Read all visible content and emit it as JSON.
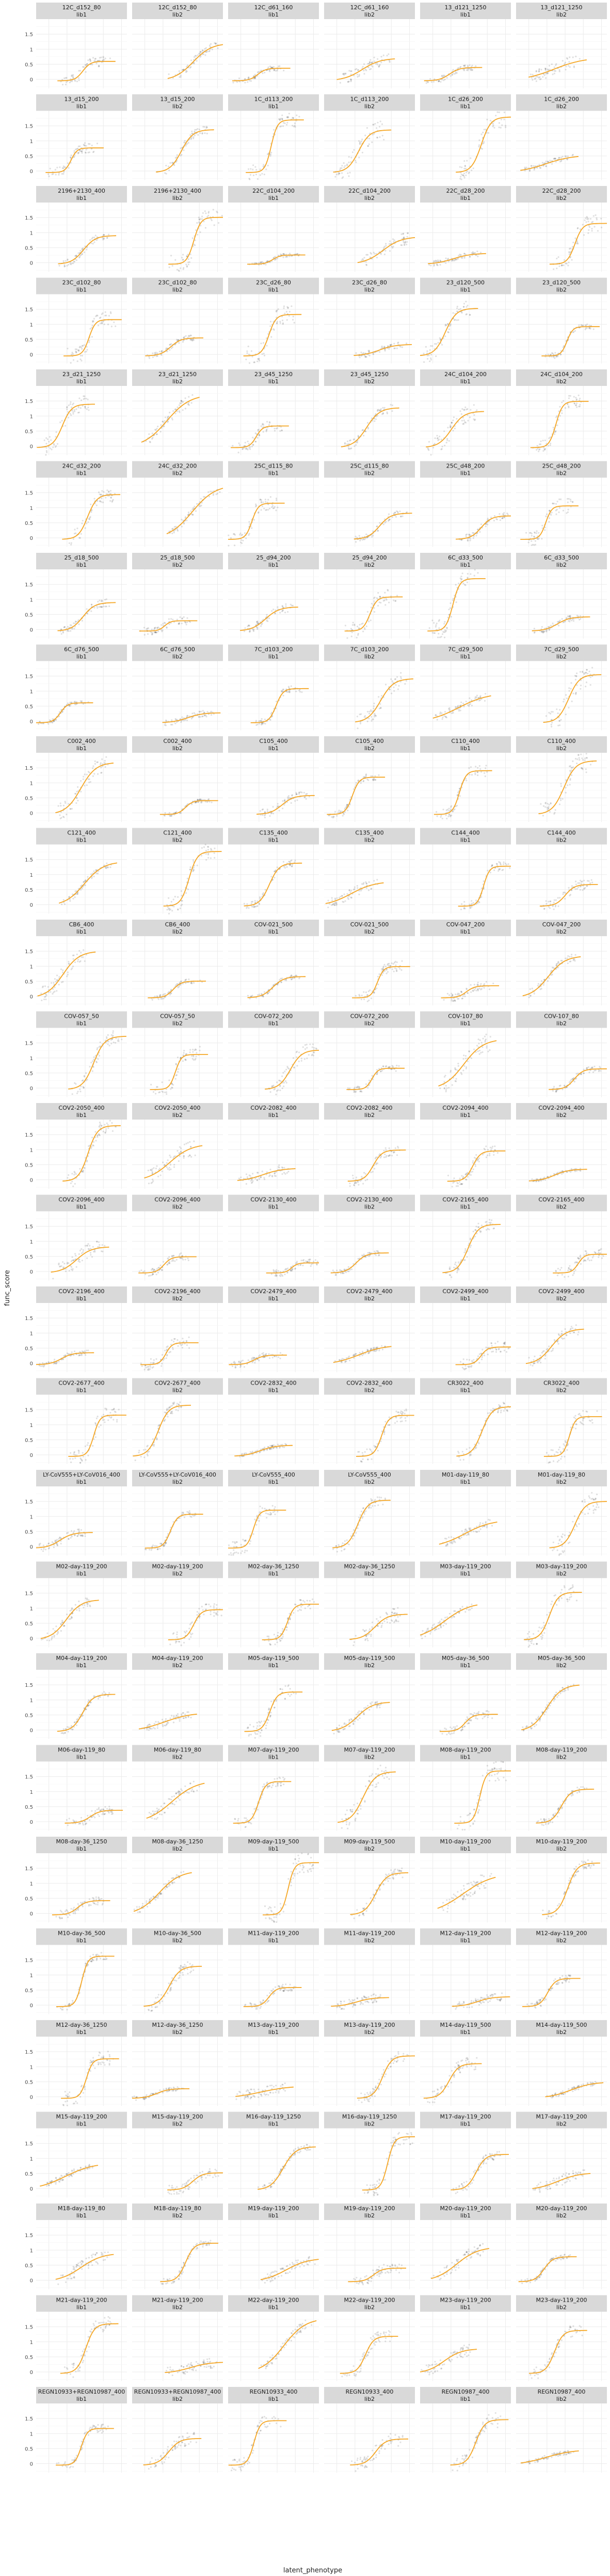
{
  "chart_data": {
    "type": "scatter",
    "title": "",
    "xlabel": "latent_phenotype",
    "ylabel": "func_score",
    "xlim": [
      -7,
      43
    ],
    "ylim": [
      -0.3,
      2.0
    ],
    "xticks": [
      0,
      10,
      20,
      30,
      40
    ],
    "yticks": [
      0,
      0.5,
      1,
      1.5
    ],
    "ytick_labels": [
      "0",
      "0.5",
      "1",
      "1.5"
    ],
    "grid": true,
    "legend": "none",
    "colors": {
      "points": "#000000",
      "curve": "#f5a623",
      "strip": "#d9d9d9",
      "grid": "#ebebeb"
    },
    "series_roles": [
      "func_score observations",
      "fitted curve"
    ],
    "panels": [
      [
        "12C_d152_80",
        "lib1"
      ],
      [
        "12C_d152_80",
        "lib2"
      ],
      [
        "12C_d61_160",
        "lib1"
      ],
      [
        "12C_d61_160",
        "lib2"
      ],
      [
        "13_d121_1250",
        "lib1"
      ],
      [
        "13_d121_1250",
        "lib2"
      ],
      [
        "13_d15_200",
        "lib1"
      ],
      [
        "13_d15_200",
        "lib2"
      ],
      [
        "1C_d113_200",
        "lib1"
      ],
      [
        "1C_d113_200",
        "lib2"
      ],
      [
        "1C_d26_200",
        "lib1"
      ],
      [
        "1C_d26_200",
        "lib2"
      ],
      [
        "2196+2130_400",
        "lib1"
      ],
      [
        "2196+2130_400",
        "lib2"
      ],
      [
        "22C_d104_200",
        "lib1"
      ],
      [
        "22C_d104_200",
        "lib2"
      ],
      [
        "22C_d28_200",
        "lib1"
      ],
      [
        "22C_d28_200",
        "lib2"
      ],
      [
        "23C_d102_80",
        "lib1"
      ],
      [
        "23C_d102_80",
        "lib2"
      ],
      [
        "23C_d26_80",
        "lib1"
      ],
      [
        "23C_d26_80",
        "lib2"
      ],
      [
        "23_d120_500",
        "lib1"
      ],
      [
        "23_d120_500",
        "lib2"
      ],
      [
        "23_d21_1250",
        "lib1"
      ],
      [
        "23_d21_1250",
        "lib2"
      ],
      [
        "23_d45_1250",
        "lib1"
      ],
      [
        "23_d45_1250",
        "lib2"
      ],
      [
        "24C_d104_200",
        "lib1"
      ],
      [
        "24C_d104_200",
        "lib2"
      ],
      [
        "24C_d32_200",
        "lib1"
      ],
      [
        "24C_d32_200",
        "lib2"
      ],
      [
        "25C_d115_80",
        "lib1"
      ],
      [
        "25C_d115_80",
        "lib2"
      ],
      [
        "25C_d48_200",
        "lib1"
      ],
      [
        "25C_d48_200",
        "lib2"
      ],
      [
        "25_d18_500",
        "lib1"
      ],
      [
        "25_d18_500",
        "lib2"
      ],
      [
        "25_d94_200",
        "lib1"
      ],
      [
        "25_d94_200",
        "lib2"
      ],
      [
        "6C_d33_500",
        "lib1"
      ],
      [
        "6C_d33_500",
        "lib2"
      ],
      [
        "6C_d76_500",
        "lib1"
      ],
      [
        "6C_d76_500",
        "lib2"
      ],
      [
        "7C_d103_200",
        "lib1"
      ],
      [
        "7C_d103_200",
        "lib2"
      ],
      [
        "7C_d29_500",
        "lib1"
      ],
      [
        "7C_d29_500",
        "lib2"
      ],
      [
        "C002_400",
        "lib1"
      ],
      [
        "C002_400",
        "lib2"
      ],
      [
        "C105_400",
        "lib1"
      ],
      [
        "C105_400",
        "lib2"
      ],
      [
        "C110_400",
        "lib1"
      ],
      [
        "C110_400",
        "lib2"
      ],
      [
        "C121_400",
        "lib1"
      ],
      [
        "C121_400",
        "lib2"
      ],
      [
        "C135_400",
        "lib1"
      ],
      [
        "C135_400",
        "lib2"
      ],
      [
        "C144_400",
        "lib1"
      ],
      [
        "C144_400",
        "lib2"
      ],
      [
        "CB6_400",
        "lib1"
      ],
      [
        "CB6_400",
        "lib2"
      ],
      [
        "COV-021_500",
        "lib1"
      ],
      [
        "COV-021_500",
        "lib2"
      ],
      [
        "COV-047_200",
        "lib1"
      ],
      [
        "COV-047_200",
        "lib2"
      ],
      [
        "COV-057_50",
        "lib1"
      ],
      [
        "COV-057_50",
        "lib2"
      ],
      [
        "COV-072_200",
        "lib1"
      ],
      [
        "COV-072_200",
        "lib2"
      ],
      [
        "COV-107_80",
        "lib1"
      ],
      [
        "COV-107_80",
        "lib2"
      ],
      [
        "COV2-2050_400",
        "lib1"
      ],
      [
        "COV2-2050_400",
        "lib2"
      ],
      [
        "COV2-2082_400",
        "lib1"
      ],
      [
        "COV2-2082_400",
        "lib2"
      ],
      [
        "COV2-2094_400",
        "lib1"
      ],
      [
        "COV2-2094_400",
        "lib2"
      ],
      [
        "COV2-2096_400",
        "lib1"
      ],
      [
        "COV2-2096_400",
        "lib2"
      ],
      [
        "COV2-2130_400",
        "lib1"
      ],
      [
        "COV2-2130_400",
        "lib2"
      ],
      [
        "COV2-2165_400",
        "lib1"
      ],
      [
        "COV2-2165_400",
        "lib2"
      ],
      [
        "COV2-2196_400",
        "lib1"
      ],
      [
        "COV2-2196_400",
        "lib2"
      ],
      [
        "COV2-2479_400",
        "lib1"
      ],
      [
        "COV2-2479_400",
        "lib2"
      ],
      [
        "COV2-2499_400",
        "lib1"
      ],
      [
        "COV2-2499_400",
        "lib2"
      ],
      [
        "COV2-2677_400",
        "lib1"
      ],
      [
        "COV2-2677_400",
        "lib2"
      ],
      [
        "COV2-2832_400",
        "lib1"
      ],
      [
        "COV2-2832_400",
        "lib2"
      ],
      [
        "CR3022_400",
        "lib1"
      ],
      [
        "CR3022_400",
        "lib2"
      ],
      [
        "LY-CoV555+LY-CoV016_400",
        "lib1"
      ],
      [
        "LY-CoV555+LY-CoV016_400",
        "lib2"
      ],
      [
        "LY-CoV555_400",
        "lib1"
      ],
      [
        "LY-CoV555_400",
        "lib2"
      ],
      [
        "M01-day-119_80",
        "lib1"
      ],
      [
        "M01-day-119_80",
        "lib2"
      ],
      [
        "M02-day-119_200",
        "lib1"
      ],
      [
        "M02-day-119_200",
        "lib2"
      ],
      [
        "M02-day-36_1250",
        "lib1"
      ],
      [
        "M02-day-36_1250",
        "lib2"
      ],
      [
        "M03-day-119_200",
        "lib1"
      ],
      [
        "M03-day-119_200",
        "lib2"
      ],
      [
        "M04-day-119_200",
        "lib1"
      ],
      [
        "M04-day-119_200",
        "lib2"
      ],
      [
        "M05-day-119_500",
        "lib1"
      ],
      [
        "M05-day-119_500",
        "lib2"
      ],
      [
        "M05-day-36_500",
        "lib1"
      ],
      [
        "M05-day-36_500",
        "lib2"
      ],
      [
        "M06-day-119_80",
        "lib1"
      ],
      [
        "M06-day-119_80",
        "lib2"
      ],
      [
        "M07-day-119_200",
        "lib1"
      ],
      [
        "M07-day-119_200",
        "lib2"
      ],
      [
        "M08-day-119_200",
        "lib1"
      ],
      [
        "M08-day-119_200",
        "lib2"
      ],
      [
        "M08-day-36_1250",
        "lib1"
      ],
      [
        "M08-day-36_1250",
        "lib2"
      ],
      [
        "M09-day-119_500",
        "lib1"
      ],
      [
        "M09-day-119_500",
        "lib2"
      ],
      [
        "M10-day-119_200",
        "lib1"
      ],
      [
        "M10-day-119_200",
        "lib2"
      ],
      [
        "M10-day-36_500",
        "lib1"
      ],
      [
        "M10-day-36_500",
        "lib2"
      ],
      [
        "M11-day-119_200",
        "lib1"
      ],
      [
        "M11-day-119_200",
        "lib2"
      ],
      [
        "M12-day-119_200",
        "lib1"
      ],
      [
        "M12-day-119_200",
        "lib2"
      ],
      [
        "M12-day-36_1250",
        "lib1"
      ],
      [
        "M12-day-36_1250",
        "lib2"
      ],
      [
        "M13-day-119_200",
        "lib1"
      ],
      [
        "M13-day-119_200",
        "lib2"
      ],
      [
        "M14-day-119_500",
        "lib1"
      ],
      [
        "M14-day-119_500",
        "lib2"
      ],
      [
        "M15-day-119_200",
        "lib1"
      ],
      [
        "M15-day-119_200",
        "lib2"
      ],
      [
        "M16-day-119_1250",
        "lib1"
      ],
      [
        "M16-day-119_1250",
        "lib2"
      ],
      [
        "M17-day-119_200",
        "lib1"
      ],
      [
        "M17-day-119_200",
        "lib2"
      ],
      [
        "M18-day-119_80",
        "lib1"
      ],
      [
        "M18-day-119_80",
        "lib2"
      ],
      [
        "M19-day-119_200",
        "lib1"
      ],
      [
        "M19-day-119_200",
        "lib2"
      ],
      [
        "M20-day-119_200",
        "lib1"
      ],
      [
        "M20-day-119_200",
        "lib2"
      ],
      [
        "M21-day-119_200",
        "lib1"
      ],
      [
        "M21-day-119_200",
        "lib2"
      ],
      [
        "M22-day-119_200",
        "lib1"
      ],
      [
        "M22-day-119_200",
        "lib2"
      ],
      [
        "M23-day-119_200",
        "lib1"
      ],
      [
        "M23-day-119_200",
        "lib2"
      ],
      [
        "REGN10933+REGN10987_400",
        "lib1"
      ],
      [
        "REGN10933+REGN10987_400",
        "lib2"
      ],
      [
        "REGN10933_400",
        "lib1"
      ],
      [
        "REGN10933_400",
        "lib2"
      ],
      [
        "REGN10987_400",
        "lib1"
      ],
      [
        "REGN10987_400",
        "lib2"
      ]
    ]
  }
}
